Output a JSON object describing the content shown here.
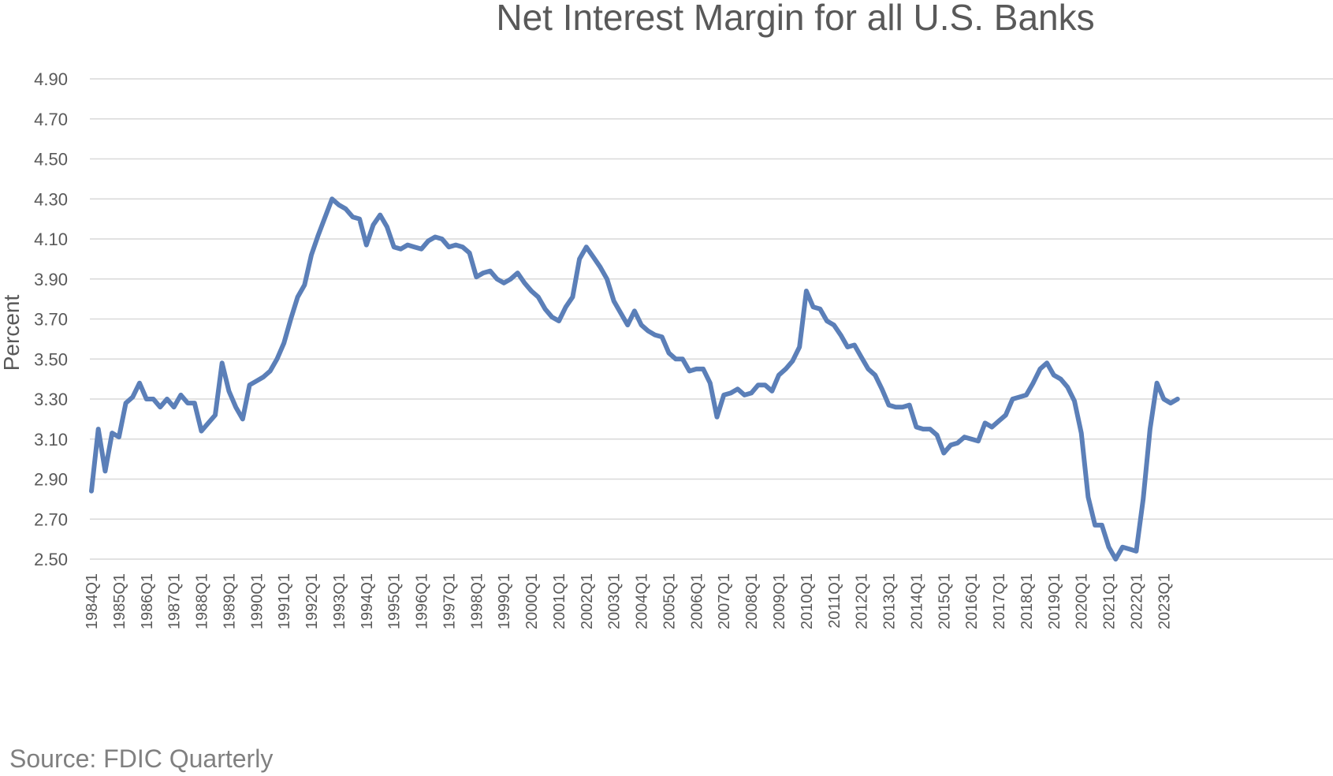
{
  "source_note": "Source: FDIC Quarterly",
  "colors": {
    "series": "#5b7fb8",
    "grid": "#d9d9d9",
    "text": "#595959",
    "source": "#808080"
  },
  "chart_data": {
    "type": "line",
    "title": "Net Interest Margin for all U.S. Banks",
    "xlabel": "",
    "ylabel": "Percent",
    "ylim": [
      2.5,
      4.9
    ],
    "yticks": [
      "2.50",
      "2.70",
      "2.90",
      "3.10",
      "3.30",
      "3.50",
      "3.70",
      "3.90",
      "4.10",
      "4.30",
      "4.50",
      "4.70",
      "4.90"
    ],
    "xtick_labels": [
      "1984Q1",
      "1985Q1",
      "1986Q1",
      "1987Q1",
      "1988Q1",
      "1989Q1",
      "1990Q1",
      "1991Q1",
      "1992Q1",
      "1993Q1",
      "1994Q1",
      "1995Q1",
      "1996Q1",
      "1997Q1",
      "1998Q1",
      "1999Q1",
      "2000Q1",
      "2001Q1",
      "2002Q1",
      "2003Q1",
      "2004Q1",
      "2005Q1",
      "2006Q1",
      "2007Q1",
      "2008Q1",
      "2009Q1",
      "2010Q1",
      "2011Q1",
      "2012Q1",
      "2013Q1",
      "2014Q1",
      "2015Q1",
      "2016Q1",
      "2017Q1",
      "2018Q1",
      "2019Q1",
      "2020Q1",
      "2021Q1",
      "2022Q1",
      "2023Q1"
    ],
    "grid": "horizontal",
    "legend": "none",
    "x_start": "1984Q1",
    "x_end": "2023Q3",
    "series": [
      {
        "values": [
          2.84,
          3.15,
          2.94,
          3.13,
          3.11,
          3.28,
          3.31,
          3.38,
          3.3,
          3.3,
          3.26,
          3.3,
          3.26,
          3.32,
          3.28,
          3.28,
          3.14,
          3.18,
          3.22,
          3.48,
          3.34,
          3.26,
          3.2,
          3.37,
          3.39,
          3.41,
          3.44,
          3.5,
          3.58,
          3.7,
          3.81,
          3.87,
          4.02,
          4.12,
          4.21,
          4.3,
          4.27,
          4.25,
          4.21,
          4.2,
          4.07,
          4.17,
          4.22,
          4.16,
          4.06,
          4.05,
          4.07,
          4.06,
          4.05,
          4.09,
          4.11,
          4.1,
          4.06,
          4.07,
          4.06,
          4.03,
          3.91,
          3.93,
          3.94,
          3.9,
          3.88,
          3.9,
          3.93,
          3.88,
          3.84,
          3.81,
          3.75,
          3.71,
          3.69,
          3.76,
          3.81,
          4.0,
          4.06,
          4.01,
          3.96,
          3.9,
          3.79,
          3.73,
          3.67,
          3.74,
          3.67,
          3.64,
          3.62,
          3.61,
          3.53,
          3.5,
          3.5,
          3.44,
          3.45,
          3.45,
          3.38,
          3.21,
          3.32,
          3.33,
          3.35,
          3.32,
          3.33,
          3.37,
          3.37,
          3.34,
          3.42,
          3.45,
          3.49,
          3.56,
          3.84,
          3.76,
          3.75,
          3.69,
          3.67,
          3.62,
          3.56,
          3.57,
          3.51,
          3.45,
          3.42,
          3.35,
          3.27,
          3.26,
          3.26,
          3.27,
          3.16,
          3.15,
          3.15,
          3.12,
          3.03,
          3.07,
          3.08,
          3.11,
          3.1,
          3.09,
          3.18,
          3.16,
          3.19,
          3.22,
          3.3,
          3.31,
          3.32,
          3.38,
          3.45,
          3.48,
          3.42,
          3.4,
          3.36,
          3.29,
          3.13,
          2.81,
          2.67,
          2.67,
          2.56,
          2.5,
          2.56,
          2.55,
          2.54,
          2.8,
          3.15,
          3.38,
          3.3,
          3.28,
          3.3
        ]
      }
    ]
  }
}
